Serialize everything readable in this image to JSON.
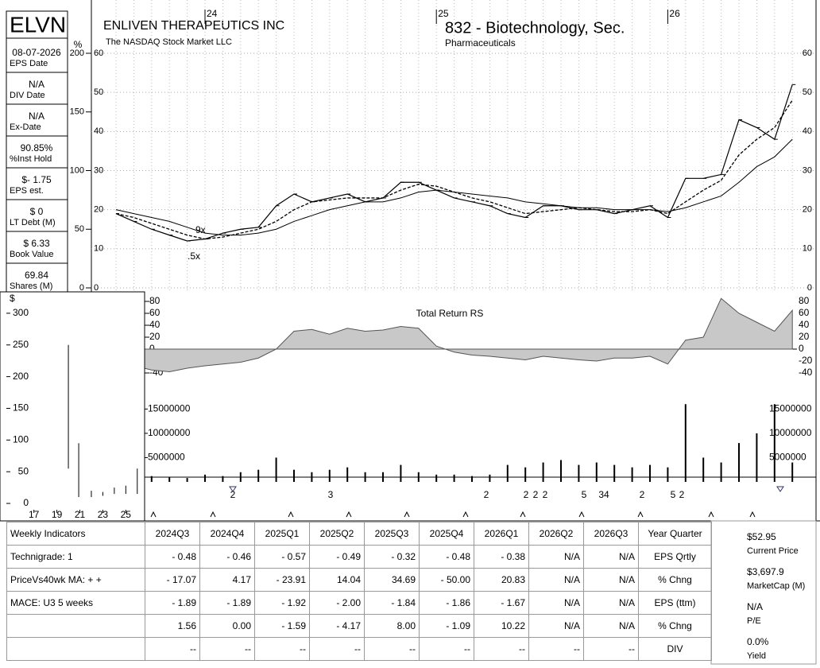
{
  "header": {
    "ticker": "ELVN",
    "company": "ENLIVEN THERAPEUTICS INC",
    "exchange": "The NASDAQ Stock Market LLC",
    "group": "832 - Biotechnology, Sec.",
    "subgroup": "Pharmaceuticals"
  },
  "sidebar": {
    "unit": "%",
    "items": [
      {
        "value": "08-07-2026",
        "label": "EPS Date"
      },
      {
        "value": "N/A",
        "label": "DIV Date"
      },
      {
        "value": "N/A",
        "label": "Ex-Date"
      },
      {
        "value": "90.85%",
        "label": "%Inst Hold"
      },
      {
        "value": "$- 1.75",
        "label": "EPS est."
      },
      {
        "value": "$ 0",
        "label": "LT Debt (M)"
      },
      {
        "value": "$ 6.33",
        "label": "Book Value"
      },
      {
        "value": "69.84",
        "label": "Shares (M)"
      }
    ]
  },
  "chart_data": [
    {
      "type": "line",
      "categories": [
        null,
        null,
        null,
        null,
        null,
        "24",
        null,
        null,
        null,
        null,
        null,
        null,
        null,
        null,
        null,
        null,
        null,
        null,
        "25",
        null,
        null,
        null,
        null,
        null,
        null,
        null,
        null,
        null,
        null,
        null,
        null,
        "26",
        null,
        null,
        null,
        null,
        null,
        null,
        null
      ],
      "values": [
        19,
        17,
        15,
        13.5,
        12,
        12.5,
        14,
        15,
        15.5,
        21,
        24,
        22,
        23,
        24,
        22,
        23,
        27,
        27,
        25,
        23,
        22,
        21,
        19,
        18,
        21,
        21,
        20,
        20,
        19,
        20,
        21,
        18,
        28,
        28,
        29,
        43,
        41,
        38,
        52
      ],
      "ma_short": [
        19,
        18,
        16.5,
        15,
        13.5,
        12.5,
        13,
        14,
        15,
        17,
        20,
        22,
        22.5,
        23,
        23,
        23,
        25,
        26.5,
        26,
        24.5,
        23,
        22,
        20.5,
        19,
        19.5,
        20,
        20.5,
        20,
        19.5,
        19.5,
        20,
        19,
        22,
        25,
        27.5,
        34,
        38,
        41,
        48
      ],
      "ma_long": [
        20,
        19,
        18,
        17,
        15.5,
        14,
        13.5,
        13.5,
        14,
        15,
        17,
        18.5,
        20,
        21,
        22,
        22,
        23,
        24.5,
        25,
        24.5,
        24,
        23.5,
        23,
        22,
        21.5,
        21,
        20.5,
        20.5,
        20,
        20,
        20,
        19.5,
        20.5,
        22,
        23.5,
        27,
        31,
        33.5,
        38
      ],
      "color": "#000000",
      "ylim": [
        0,
        60
      ],
      "yticks": [
        0,
        10,
        20,
        30,
        40,
        50,
        60
      ],
      "y2lim": [
        0,
        200
      ],
      "y2ticks": [
        0,
        50,
        100,
        150,
        200
      ],
      "annotations": [
        "9x",
        ".5x"
      ],
      "grid": true
    },
    {
      "type": "area",
      "title": "Total Return RS",
      "values": [
        -20,
        -28,
        -35,
        -38,
        -32,
        -28,
        -25,
        -22,
        -15,
        0,
        30,
        33,
        25,
        35,
        30,
        32,
        38,
        35,
        5,
        -5,
        -10,
        -12,
        -15,
        -18,
        -12,
        -15,
        -18,
        -20,
        -15,
        -15,
        -12,
        -25,
        15,
        20,
        85,
        60,
        45,
        30,
        65
      ],
      "color": "#c8c8c8",
      "ylim": [
        -50,
        90
      ],
      "yticks": [
        -40,
        -20,
        0,
        20,
        40,
        60,
        80
      ]
    },
    {
      "type": "bar",
      "values": [
        1000000,
        1500000,
        1200000,
        1000000,
        800000,
        1500000,
        1200000,
        2000000,
        2500000,
        5000000,
        2500000,
        2000000,
        2500000,
        3000000,
        2000000,
        2000000,
        3500000,
        2000000,
        1500000,
        1500000,
        1200000,
        1500000,
        3500000,
        3000000,
        4000000,
        4500000,
        3500000,
        4000000,
        3500000,
        3000000,
        3500000,
        3000000,
        16000000,
        5000000,
        4000000,
        8000000,
        10000000,
        16000000,
        4000000
      ],
      "color": "#000000",
      "ylim": [
        0,
        18000000
      ],
      "yticks": [
        5000000,
        10000000,
        15000000
      ],
      "markers": [
        "2",
        "3",
        "2",
        "2",
        "2",
        "2",
        "5",
        "34",
        "2",
        "5",
        "2"
      ]
    },
    {
      "type": "range",
      "y_label": "$",
      "x": [
        20,
        20.9,
        22,
        23,
        24,
        25,
        26
      ],
      "low": [
        55,
        10,
        10,
        12,
        15,
        15,
        15
      ],
      "high": [
        250,
        95,
        20,
        18,
        25,
        28,
        55
      ],
      "xlim": [
        14.6,
        26.5
      ],
      "xticks": [
        17,
        19,
        21,
        23,
        25
      ],
      "ylim": [
        -15,
        330
      ],
      "yticks": [
        0,
        50,
        100,
        150,
        200,
        250,
        300
      ]
    }
  ],
  "table": {
    "header": [
      "Weekly Indicators",
      "2024Q3",
      "2024Q4",
      "2025Q1",
      "2025Q2",
      "2025Q3",
      "2025Q4",
      "2026Q1",
      "2026Q2",
      "2026Q3",
      "Year Quarter"
    ],
    "rows": [
      [
        "Technigrade: 1",
        "- 0.48",
        "- 0.46",
        "- 0.57",
        "- 0.49",
        "- 0.32",
        "- 0.48",
        "- 0.38",
        "N/A",
        "N/A",
        "EPS Qrtly"
      ],
      [
        "PriceVs40wk MA:  + +",
        "- 17.07",
        "4.17",
        "- 23.91",
        "14.04",
        "34.69",
        "- 50.00",
        "20.83",
        "N/A",
        "N/A",
        "% Chng"
      ],
      [
        "MACE: U3  5 weeks",
        "- 1.89",
        "- 1.89",
        "- 1.92",
        "- 2.00",
        "- 1.84",
        "- 1.86",
        "- 1.67",
        "N/A",
        "N/A",
        "EPS (ttm)"
      ],
      [
        null,
        "1.56",
        "0.00",
        "- 1.59",
        "- 4.17",
        "8.00",
        "- 1.09",
        "10.22",
        "N/A",
        "N/A",
        "% Chng"
      ],
      [
        null,
        "--",
        "--",
        "--",
        "--",
        "--",
        "--",
        "--",
        "--",
        "--",
        "DIV"
      ]
    ]
  },
  "summary": [
    {
      "value": "$52.95",
      "label": "Current Price"
    },
    {
      "value": "$3,697.9",
      "label": "MarketCap (M)"
    },
    {
      "value": "N/A",
      "label": "P/E"
    },
    {
      "value": "0.0%",
      "label": "Yield"
    }
  ]
}
